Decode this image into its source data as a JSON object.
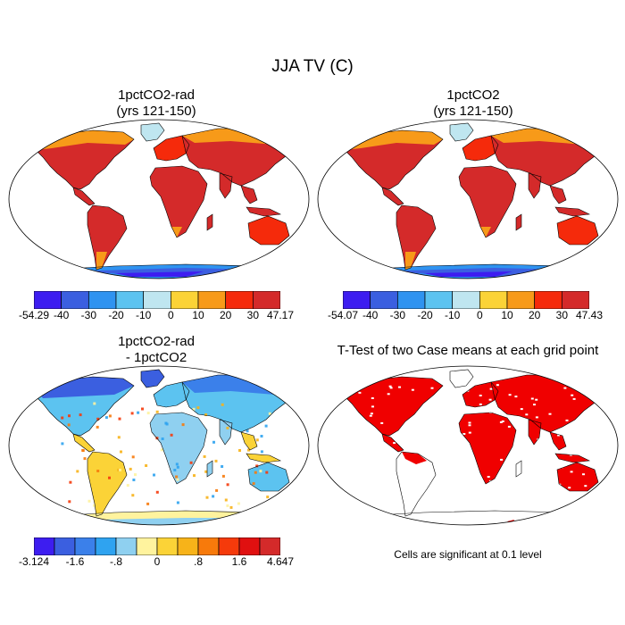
{
  "title": "JJA TV (C)",
  "panels": [
    {
      "id": "p1",
      "title_lines": [
        "1pctCO2-rad",
        "(yrs 121-150)"
      ],
      "colorbar": {
        "colors": [
          "#3d1df0",
          "#3b5fe0",
          "#2f93f0",
          "#5cc3f0",
          "#bfe6f0",
          "#fbd337",
          "#f79a19",
          "#f52a0b",
          "#d42a2a"
        ],
        "labels": [
          "-54.29",
          "-40",
          "-30",
          "-20",
          "-10",
          "0",
          "10",
          "20",
          "30",
          "47.17"
        ]
      }
    },
    {
      "id": "p2",
      "title_lines": [
        "1pctCO2",
        "(yrs 121-150)"
      ],
      "colorbar": {
        "colors": [
          "#3d1df0",
          "#3b5fe0",
          "#2f93f0",
          "#5cc3f0",
          "#bfe6f0",
          "#fbd337",
          "#f79a19",
          "#f52a0b",
          "#d42a2a"
        ],
        "labels": [
          "-54.07",
          "-40",
          "-30",
          "-20",
          "-10",
          "0",
          "10",
          "20",
          "30",
          "47.43"
        ]
      }
    },
    {
      "id": "p3",
      "title_lines": [
        "1pctCO2-rad",
        "- 1pctCO2"
      ],
      "colorbar": {
        "colors": [
          "#3d1df0",
          "#3b5fe0",
          "#3b80ea",
          "#2fa3f0",
          "#8fd0f0",
          "#fff39e",
          "#fbd337",
          "#f7b319",
          "#f77a0b",
          "#f53a0b",
          "#e01010",
          "#d42a2a"
        ],
        "labels": [
          "-3.124",
          "-1.6",
          "-.8",
          "0",
          ".8",
          "1.6",
          "4.647"
        ],
        "label_at_boundary": [
          0,
          2,
          4,
          6,
          8,
          10,
          12
        ]
      }
    },
    {
      "id": "p4",
      "title_lines": [
        "T-Test of two Case means at each grid point"
      ],
      "note": "Cells are significant at 0.1 level"
    }
  ]
}
